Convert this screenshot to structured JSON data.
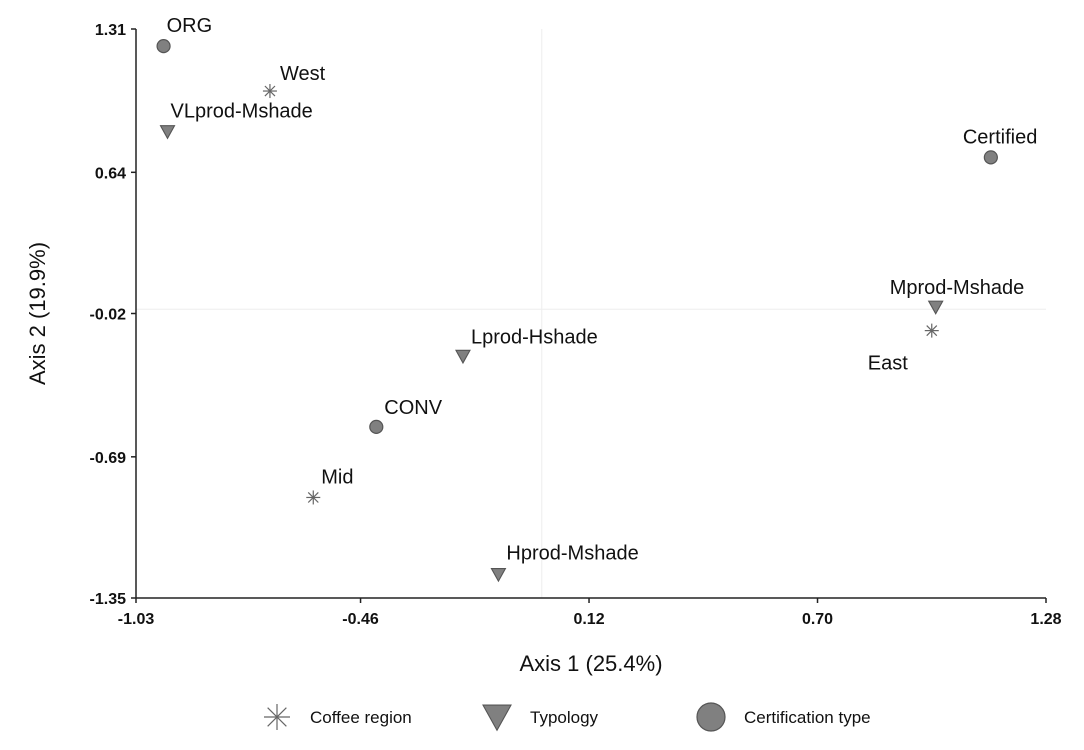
{
  "chart_data": {
    "type": "scatter",
    "title": "",
    "xlabel": "Axis  1 (25.4%)",
    "ylabel": "Axis 2 (19.9%)",
    "xlim": [
      -1.03,
      1.28
    ],
    "ylim": [
      -1.35,
      1.31
    ],
    "xticks": [
      -1.03,
      -0.46,
      0.12,
      0.7,
      1.28
    ],
    "xtick_labels": [
      "-1.03",
      "-0.46",
      "0.12",
      "0.70",
      "1.28"
    ],
    "yticks": [
      1.31,
      0.64,
      -0.02,
      -0.69,
      -1.35
    ],
    "ytick_labels": [
      "1.31",
      "0.64",
      "-0.02",
      "-0.69",
      "-1.35"
    ],
    "reference_lines": {
      "x": 0.0,
      "y": 0.0
    },
    "grid": false,
    "series": [
      {
        "name": "Coffee region",
        "marker": "asterisk",
        "points": [
          {
            "label": "West",
            "x": -0.69,
            "y": 1.02
          },
          {
            "label": "East",
            "x": 0.99,
            "y": -0.1
          },
          {
            "label": "Mid",
            "x": -0.58,
            "y": -0.88
          }
        ]
      },
      {
        "name": "Typology",
        "marker": "triangle",
        "points": [
          {
            "label": "VLprod-Mshade",
            "x": -0.95,
            "y": 0.83
          },
          {
            "label": "Mprod-Mshade",
            "x": 1.0,
            "y": 0.01
          },
          {
            "label": "Lprod-Hshade",
            "x": -0.2,
            "y": -0.22
          },
          {
            "label": "Hprod-Mshade",
            "x": -0.11,
            "y": -1.24
          }
        ]
      },
      {
        "name": "Certification type",
        "marker": "circle",
        "points": [
          {
            "label": "ORG",
            "x": -0.96,
            "y": 1.23
          },
          {
            "label": "Certified",
            "x": 1.14,
            "y": 0.71
          },
          {
            "label": "CONV",
            "x": -0.42,
            "y": -0.55
          }
        ]
      }
    ],
    "legend": {
      "position": "bottom",
      "items": [
        {
          "label": "Coffee region",
          "marker": "asterisk"
        },
        {
          "label": "Typology",
          "marker": "triangle"
        },
        {
          "label": "Certification type",
          "marker": "circle"
        }
      ]
    },
    "colors": {
      "marker_fill": "#808080",
      "marker_stroke": "#555555",
      "asterisk": "#666666",
      "axis": "#222222",
      "reference_line": "#eeeeee"
    }
  }
}
